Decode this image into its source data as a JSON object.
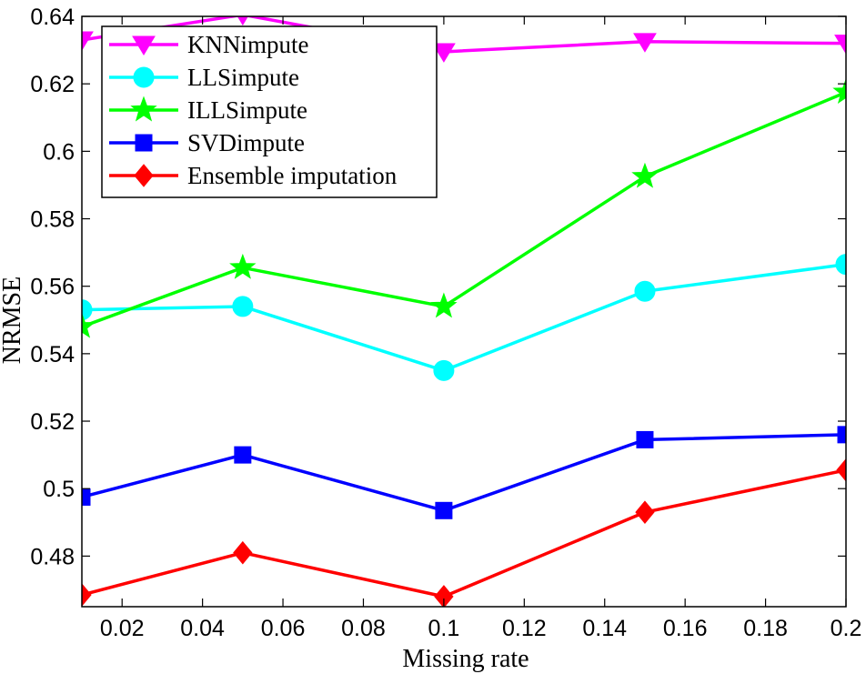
{
  "chart_data": {
    "type": "line",
    "title": "",
    "xlabel": "Missing rate",
    "ylabel": "NRMSE",
    "xlim": [
      0.01,
      0.2
    ],
    "ylim": [
      0.465,
      0.64
    ],
    "xticks": [
      0.02,
      0.04,
      0.06,
      0.08,
      0.1,
      0.12,
      0.14,
      0.16,
      0.18,
      0.2
    ],
    "xtick_labels": [
      "0.02",
      "0.04",
      "0.06",
      "0.08",
      "0.1",
      "0.12",
      "0.14",
      "0.16",
      "0.18",
      "0.2"
    ],
    "yticks": [
      0.48,
      0.5,
      0.52,
      0.54,
      0.56,
      0.58,
      0.6,
      0.62,
      0.64
    ],
    "ytick_labels": [
      "0.48",
      "0.5",
      "0.52",
      "0.54",
      "0.56",
      "0.58",
      "0.6",
      "0.62",
      "0.64"
    ],
    "grid": false,
    "legend_position": "top-left",
    "x": [
      0.01,
      0.05,
      0.1,
      0.15,
      0.2
    ],
    "series": [
      {
        "name": "KNNimpute",
        "color": "#ff00ff",
        "marker": "triangle-down",
        "values": [
          0.633,
          0.6405,
          0.6295,
          0.6325,
          0.632
        ]
      },
      {
        "name": "LLSimpute",
        "color": "#00ffff",
        "marker": "circle",
        "values": [
          0.553,
          0.554,
          0.535,
          0.5585,
          0.5665
        ]
      },
      {
        "name": "ILLSimpute",
        "color": "#00ff00",
        "marker": "star",
        "values": [
          0.548,
          0.5655,
          0.554,
          0.5925,
          0.6175
        ]
      },
      {
        "name": "SVDimpute",
        "color": "#0000ff",
        "marker": "square",
        "values": [
          0.4975,
          0.51,
          0.4935,
          0.5145,
          0.516
        ]
      },
      {
        "name": "Ensemble imputation",
        "color": "#ff0000",
        "marker": "diamond",
        "values": [
          0.4685,
          0.481,
          0.468,
          0.493,
          0.5055
        ]
      }
    ]
  }
}
